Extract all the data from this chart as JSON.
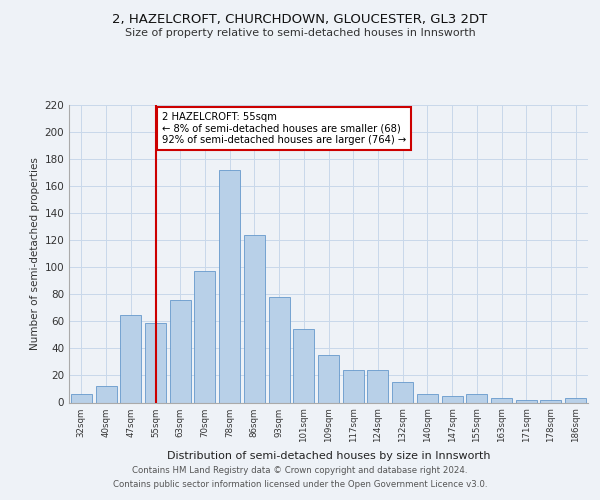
{
  "title1": "2, HAZELCROFT, CHURCHDOWN, GLOUCESTER, GL3 2DT",
  "title2": "Size of property relative to semi-detached houses in Innsworth",
  "xlabel": "Distribution of semi-detached houses by size in Innsworth",
  "ylabel": "Number of semi-detached properties",
  "categories": [
    "32sqm",
    "40sqm",
    "47sqm",
    "55sqm",
    "63sqm",
    "70sqm",
    "78sqm",
    "86sqm",
    "93sqm",
    "101sqm",
    "109sqm",
    "117sqm",
    "124sqm",
    "132sqm",
    "140sqm",
    "147sqm",
    "155sqm",
    "163sqm",
    "171sqm",
    "178sqm",
    "186sqm"
  ],
  "values": [
    6,
    12,
    65,
    59,
    76,
    97,
    172,
    124,
    78,
    54,
    35,
    24,
    24,
    15,
    6,
    5,
    6,
    3,
    2,
    2,
    3
  ],
  "bar_color": "#b8d0e8",
  "bar_edge_color": "#6699cc",
  "grid_color": "#c8d8ea",
  "vline_x_index": 3,
  "vline_color": "#cc0000",
  "annotation_line1": "2 HAZELCROFT: 55sqm",
  "annotation_line2": "← 8% of semi-detached houses are smaller (68)",
  "annotation_line3": "92% of semi-detached houses are larger (764) →",
  "annotation_box_color": "#ffffff",
  "annotation_box_edge": "#cc0000",
  "ylim": [
    0,
    220
  ],
  "yticks": [
    0,
    20,
    40,
    60,
    80,
    100,
    120,
    140,
    160,
    180,
    200,
    220
  ],
  "footer1": "Contains HM Land Registry data © Crown copyright and database right 2024.",
  "footer2": "Contains public sector information licensed under the Open Government Licence v3.0.",
  "bg_color": "#eef2f7"
}
